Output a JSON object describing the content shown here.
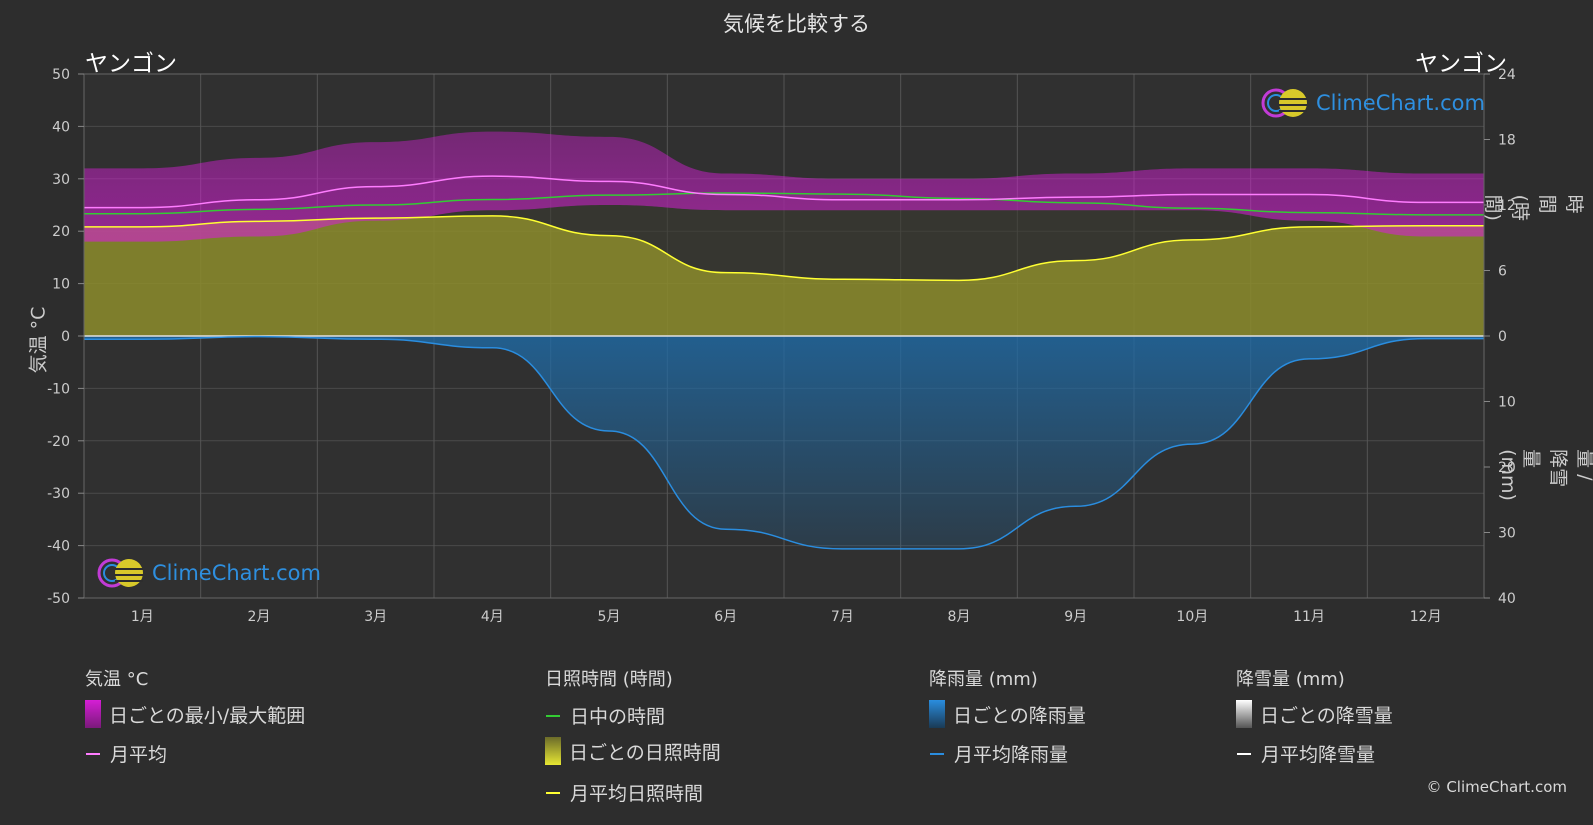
{
  "title": "気候を比較する",
  "location_left": "ヤンゴン",
  "location_right": "ヤンゴン",
  "axis_labels": {
    "y_left": "気温 °C",
    "y_right_top": "日照時間 (時間)",
    "y_right_bottom": "降雨量 / 降雪量 (mm)"
  },
  "logo_text": "ClimeChart.com",
  "copyright": "© ClimeChart.com",
  "legend": {
    "temperature": {
      "header": "気温 °C",
      "items": [
        "日ごとの最小/最大範囲",
        "月平均"
      ]
    },
    "sunshine": {
      "header": "日照時間 (時間)",
      "items": [
        "日中の時間",
        "日ごとの日照時間",
        "月平均日照時間"
      ]
    },
    "rain": {
      "header": "降雨量 (mm)",
      "items": [
        "日ごとの降雨量",
        "月平均降雨量"
      ]
    },
    "snow": {
      "header": "降雪量 (mm)",
      "items": [
        "日ごとの降雪量",
        "月平均降雪量"
      ]
    }
  },
  "colors": {
    "temp_range": "#d51ed5",
    "temp_mean": "#ff7cff",
    "daylight": "#33cc33",
    "sunshine_fill": "#8c8c2c",
    "sunshine_mean": "#ffff33",
    "rain_fill": "#1f6aa5",
    "rain_mean": "#2a8ddf",
    "snow_mean": "#ffffff"
  },
  "chart_data": {
    "type": "line",
    "categories": [
      "1月",
      "2月",
      "3月",
      "4月",
      "5月",
      "6月",
      "7月",
      "8月",
      "9月",
      "10月",
      "11月",
      "12月"
    ],
    "y_left_ticks": [
      50,
      40,
      30,
      20,
      10,
      0,
      -10,
      -20,
      -30,
      -40,
      -50
    ],
    "y_left_range": [
      -50,
      50
    ],
    "y_right_top_ticks": [
      24,
      18,
      12,
      6,
      0
    ],
    "y_right_top_range": [
      0,
      24
    ],
    "y_right_bottom_ticks": [
      0,
      10,
      20,
      30,
      40
    ],
    "y_right_bottom_range": [
      0,
      40
    ],
    "grid": true,
    "series": [
      {
        "name": "月平均",
        "axis": "temperature",
        "values": [
          24.5,
          26.0,
          28.5,
          30.5,
          29.5,
          27.0,
          26.0,
          26.0,
          26.5,
          27.0,
          27.0,
          25.5
        ]
      },
      {
        "name": "日ごとの最小/最大範囲",
        "axis": "temperature",
        "min": [
          18,
          19,
          22,
          24,
          25,
          24,
          24,
          24,
          24,
          24,
          22,
          19
        ],
        "max": [
          32,
          34,
          37,
          39,
          38,
          31,
          30,
          30,
          31,
          32,
          32,
          31
        ]
      },
      {
        "name": "日中の時間",
        "axis": "sunshine_hours",
        "values": [
          11.2,
          11.6,
          12.0,
          12.5,
          12.9,
          13.1,
          13.0,
          12.6,
          12.2,
          11.7,
          11.3,
          11.1
        ]
      },
      {
        "name": "月平均日照時間",
        "axis": "sunshine_hours",
        "values": [
          10.0,
          10.5,
          10.8,
          11.0,
          9.2,
          5.8,
          5.2,
          5.1,
          6.9,
          8.8,
          10.0,
          10.1
        ]
      },
      {
        "name": "月平均降雨量",
        "axis": "precipitation_mm",
        "values": [
          0.5,
          0.1,
          0.5,
          1.8,
          14.5,
          29.5,
          32.5,
          32.5,
          26.0,
          16.5,
          3.5,
          0.4
        ]
      },
      {
        "name": "月平均降雪量",
        "axis": "precipitation_mm",
        "values": [
          0,
          0,
          0,
          0,
          0,
          0,
          0,
          0,
          0,
          0,
          0,
          0
        ]
      }
    ]
  }
}
